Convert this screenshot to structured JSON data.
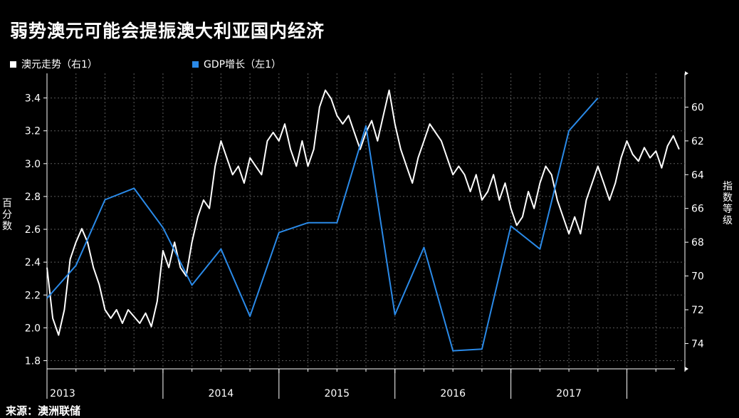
{
  "title": "弱势澳元可能会提振澳大利亚国内经济",
  "source": "来源：澳洲联储",
  "colors": {
    "aud": "#ffffff",
    "gdp": "#2a8ae8",
    "background": "#000000"
  },
  "chart_data": {
    "type": "line",
    "legend_placement": "top-left",
    "grid": true,
    "series": [
      {
        "name": "澳元走势（右1）",
        "axis": "right",
        "color": "#ffffff",
        "points": [
          [
            2013.0,
            69.5
          ],
          [
            2013.05,
            72.5
          ],
          [
            2013.1,
            73.5
          ],
          [
            2013.15,
            72.0
          ],
          [
            2013.2,
            69.0
          ],
          [
            2013.25,
            68.0
          ],
          [
            2013.3,
            67.2
          ],
          [
            2013.35,
            68.0
          ],
          [
            2013.4,
            69.5
          ],
          [
            2013.45,
            70.5
          ],
          [
            2013.5,
            72.0
          ],
          [
            2013.55,
            72.5
          ],
          [
            2013.6,
            72.0
          ],
          [
            2013.65,
            72.8
          ],
          [
            2013.7,
            72.0
          ],
          [
            2013.75,
            72.4
          ],
          [
            2013.8,
            72.8
          ],
          [
            2013.85,
            72.2
          ],
          [
            2013.9,
            73.0
          ],
          [
            2013.95,
            71.5
          ],
          [
            2014.0,
            68.5
          ],
          [
            2014.05,
            69.5
          ],
          [
            2014.1,
            68.0
          ],
          [
            2014.15,
            69.5
          ],
          [
            2014.2,
            70.0
          ],
          [
            2014.25,
            68.0
          ],
          [
            2014.3,
            66.5
          ],
          [
            2014.35,
            65.5
          ],
          [
            2014.4,
            66.0
          ],
          [
            2014.45,
            63.5
          ],
          [
            2014.5,
            62.0
          ],
          [
            2014.55,
            63.0
          ],
          [
            2014.6,
            64.0
          ],
          [
            2014.65,
            63.5
          ],
          [
            2014.7,
            64.5
          ],
          [
            2014.75,
            63.0
          ],
          [
            2014.8,
            63.5
          ],
          [
            2014.85,
            64.0
          ],
          [
            2014.9,
            62.0
          ],
          [
            2014.95,
            61.5
          ],
          [
            2015.0,
            62.0
          ],
          [
            2015.05,
            61.0
          ],
          [
            2015.1,
            62.5
          ],
          [
            2015.15,
            63.5
          ],
          [
            2015.2,
            62.0
          ],
          [
            2015.25,
            63.5
          ],
          [
            2015.3,
            62.5
          ],
          [
            2015.35,
            60.0
          ],
          [
            2015.4,
            59.0
          ],
          [
            2015.45,
            59.5
          ],
          [
            2015.5,
            60.5
          ],
          [
            2015.55,
            61.0
          ],
          [
            2015.6,
            60.5
          ],
          [
            2015.65,
            61.5
          ],
          [
            2015.7,
            62.5
          ],
          [
            2015.75,
            61.5
          ],
          [
            2015.8,
            60.8
          ],
          [
            2015.85,
            62.0
          ],
          [
            2015.9,
            60.5
          ],
          [
            2015.95,
            59.0
          ],
          [
            2016.0,
            61.0
          ],
          [
            2016.05,
            62.5
          ],
          [
            2016.1,
            63.5
          ],
          [
            2016.15,
            64.5
          ],
          [
            2016.2,
            63.0
          ],
          [
            2016.25,
            62.0
          ],
          [
            2016.3,
            61.0
          ],
          [
            2016.35,
            61.5
          ],
          [
            2016.4,
            62.0
          ],
          [
            2016.45,
            63.0
          ],
          [
            2016.5,
            64.0
          ],
          [
            2016.55,
            63.5
          ],
          [
            2016.6,
            64.0
          ],
          [
            2016.65,
            65.0
          ],
          [
            2016.7,
            64.0
          ],
          [
            2016.75,
            65.5
          ],
          [
            2016.8,
            65.0
          ],
          [
            2016.85,
            64.0
          ],
          [
            2016.9,
            65.5
          ],
          [
            2016.95,
            64.5
          ],
          [
            2017.0,
            66.0
          ],
          [
            2017.05,
            67.0
          ],
          [
            2017.1,
            66.5
          ],
          [
            2017.15,
            65.0
          ],
          [
            2017.2,
            66.0
          ],
          [
            2017.25,
            64.5
          ],
          [
            2017.3,
            63.5
          ],
          [
            2017.35,
            64.0
          ],
          [
            2017.4,
            65.5
          ],
          [
            2017.45,
            66.5
          ],
          [
            2017.5,
            67.5
          ],
          [
            2017.55,
            66.5
          ],
          [
            2017.6,
            67.5
          ],
          [
            2017.65,
            65.5
          ],
          [
            2017.7,
            64.5
          ],
          [
            2017.75,
            63.5
          ],
          [
            2017.8,
            64.5
          ],
          [
            2017.85,
            65.5
          ],
          [
            2017.9,
            64.5
          ],
          [
            2017.95,
            63.0
          ],
          [
            2018.0,
            62.0
          ],
          [
            2018.05,
            62.8
          ],
          [
            2018.1,
            63.2
          ],
          [
            2018.15,
            62.4
          ],
          [
            2018.2,
            63.0
          ],
          [
            2018.25,
            62.6
          ],
          [
            2018.3,
            63.6
          ],
          [
            2018.35,
            62.3
          ],
          [
            2018.4,
            61.7
          ],
          [
            2018.45,
            62.5
          ]
        ]
      },
      {
        "name": "GDP增长（左1）",
        "axis": "left",
        "color": "#2a8ae8",
        "points": [
          [
            2013.0,
            2.18
          ],
          [
            2013.25,
            2.38
          ],
          [
            2013.5,
            2.78
          ],
          [
            2013.75,
            2.85
          ],
          [
            2014.0,
            2.61
          ],
          [
            2014.25,
            2.26
          ],
          [
            2014.5,
            2.48
          ],
          [
            2014.75,
            2.07
          ],
          [
            2015.0,
            2.58
          ],
          [
            2015.25,
            2.64
          ],
          [
            2015.5,
            2.64
          ],
          [
            2015.75,
            3.23
          ],
          [
            2016.0,
            2.08
          ],
          [
            2016.25,
            2.49
          ],
          [
            2016.5,
            1.86
          ],
          [
            2016.75,
            1.87
          ],
          [
            2017.0,
            2.62
          ],
          [
            2017.25,
            2.48
          ],
          [
            2017.5,
            3.2
          ],
          [
            2017.75,
            3.4
          ]
        ]
      }
    ],
    "y_left": {
      "label": "百分数",
      "range": [
        1.75,
        3.55
      ],
      "ticks": [
        "1.8",
        "2.0",
        "2.2",
        "2.4",
        "2.6",
        "2.8",
        "3.0",
        "3.2",
        "3.4"
      ]
    },
    "y_right": {
      "label": "指数等级",
      "range": [
        75.5,
        58.0
      ],
      "inverted": true,
      "ticks": [
        "74",
        "72",
        "70",
        "68",
        "66",
        "64",
        "62",
        "60"
      ]
    },
    "x": {
      "range": [
        2013.0,
        2018.5
      ],
      "years": [
        "2013",
        "2014",
        "2015",
        "2016",
        "2017"
      ]
    }
  }
}
